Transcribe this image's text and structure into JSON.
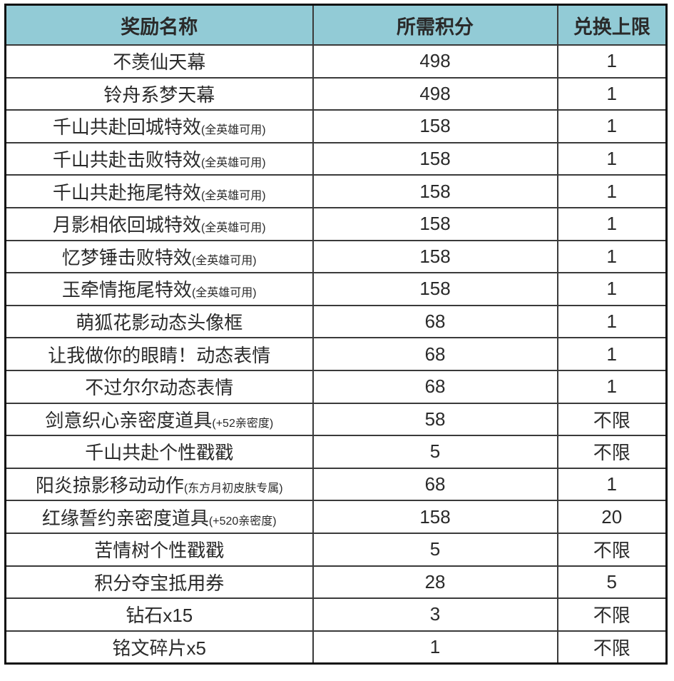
{
  "colors": {
    "header_bg": "#92cbd6",
    "outer_border": "#0f0f0f",
    "inner_border": "#3a3a3a",
    "text": "#2a2a2a"
  },
  "table": {
    "columns": [
      "奖励名称",
      "所需积分",
      "兑换上限"
    ],
    "rows": [
      {
        "name": "不羡仙天幕",
        "note": "",
        "points": "498",
        "limit": "1"
      },
      {
        "name": "铃舟系梦天幕",
        "note": "",
        "points": "498",
        "limit": "1"
      },
      {
        "name": "千山共赴回城特效",
        "note": "(全英雄可用)",
        "points": "158",
        "limit": "1"
      },
      {
        "name": "千山共赴击败特效",
        "note": "(全英雄可用)",
        "points": "158",
        "limit": "1"
      },
      {
        "name": "千山共赴拖尾特效",
        "note": "(全英雄可用)",
        "points": "158",
        "limit": "1"
      },
      {
        "name": "月影相依回城特效",
        "note": "(全英雄可用)",
        "points": "158",
        "limit": "1"
      },
      {
        "name": "忆梦锤击败特效",
        "note": "(全英雄可用)",
        "points": "158",
        "limit": "1"
      },
      {
        "name": "玉牵情拖尾特效",
        "note": "(全英雄可用)",
        "points": "158",
        "limit": "1"
      },
      {
        "name": "萌狐花影动态头像框",
        "note": "",
        "points": "68",
        "limit": "1"
      },
      {
        "name": "让我做你的眼睛！动态表情",
        "note": "",
        "points": "68",
        "limit": "1"
      },
      {
        "name": "不过尔尔动态表情",
        "note": "",
        "points": "68",
        "limit": "1"
      },
      {
        "name": "剑意织心亲密度道具",
        "note": "(+52亲密度)",
        "points": "58",
        "limit": "不限"
      },
      {
        "name": "千山共赴个性戳戳",
        "note": "",
        "points": "5",
        "limit": "不限"
      },
      {
        "name": "阳炎掠影移动动作",
        "note": "(东方月初皮肤专属)",
        "points": "68",
        "limit": "1"
      },
      {
        "name": "红缘誓约亲密度道具",
        "note": "(+520亲密度)",
        "points": "158",
        "limit": "20"
      },
      {
        "name": "苦情树个性戳戳",
        "note": "",
        "points": "5",
        "limit": "不限"
      },
      {
        "name": "积分夺宝抵用券",
        "note": "",
        "points": "28",
        "limit": "5"
      },
      {
        "name": "钻石x15",
        "note": "",
        "points": "3",
        "limit": "不限"
      },
      {
        "name": "铭文碎片x5",
        "note": "",
        "points": "1",
        "limit": "不限"
      }
    ]
  }
}
